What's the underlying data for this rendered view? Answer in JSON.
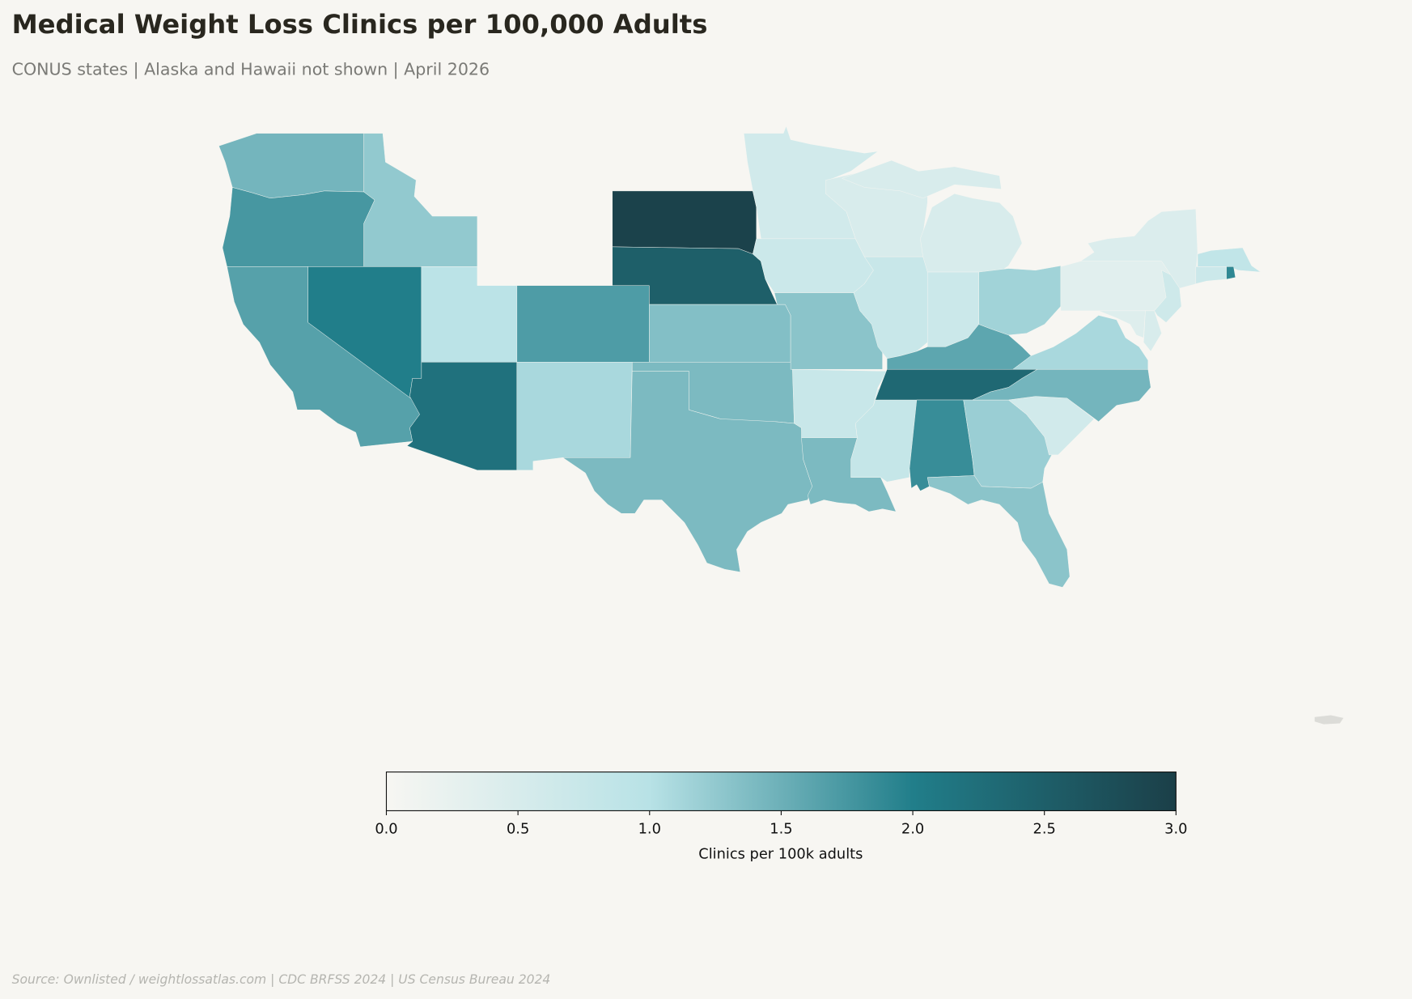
{
  "title": "Medical Weight Loss Clinics per 100,000 Adults",
  "subtitle": "CONUS states | Alaska and Hawaii not shown | April 2026",
  "source": "Source: Ownlisted / weightlossatlas.com | CDC BRFSS 2024 | US Census Bureau 2024",
  "chart_data": {
    "type": "choropleth",
    "title": "Medical Weight Loss Clinics per 100,000 Adults",
    "colorbar": {
      "label": "Clinics per 100k adults",
      "range": [
        0,
        3
      ],
      "ticks": [
        "0.0",
        "0.5",
        "1.0",
        "1.5",
        "2.0",
        "2.5",
        "3.0"
      ],
      "colors": [
        "#f7f6f2",
        "#b8e2e6",
        "#217e8a",
        "#1b3f48"
      ],
      "placement": "bottom"
    },
    "no_data_color": "#dcdcd8",
    "values": {
      "WA": 1.45,
      "OR": 1.75,
      "ID": 1.25,
      "CA": 1.65,
      "NV": 2.0,
      "UT": 0.95,
      "AZ": 2.2,
      "CO": 1.7,
      "NM": 1.1,
      "SD": 2.95,
      "NE": 2.5,
      "KS": 1.35,
      "OK": 1.4,
      "TX": 1.4,
      "MN": 0.6,
      "IA": 0.7,
      "MO": 1.3,
      "AR": 0.75,
      "LA": 1.4,
      "MS": 0.8,
      "WI": 0.5,
      "IL": 0.75,
      "MI": 0.5,
      "IN": 0.7,
      "OH": 1.15,
      "KY": 1.6,
      "TN": 2.35,
      "AL": 1.85,
      "GA": 1.2,
      "FL": 1.3,
      "SC": 0.6,
      "NC": 1.45,
      "VA": 1.1,
      "PA": 0.35,
      "NY": 0.45,
      "NJ": 0.65,
      "MD": 0.4,
      "DE": 0.5,
      "MA": 0.85,
      "CT": 0.7,
      "RI": 1.9
    }
  }
}
